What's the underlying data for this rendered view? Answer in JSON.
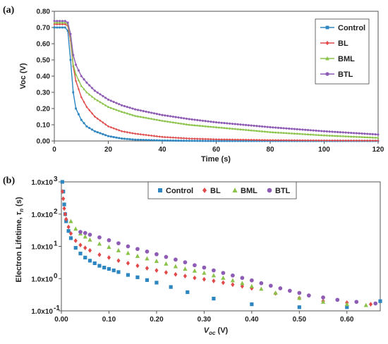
{
  "colors": {
    "Control": "#2E86C1",
    "BL": "#E04A4A",
    "BML": "#8BC34A",
    "BTL": "#8E5CB5"
  },
  "chart_data": [
    {
      "type": "line",
      "panel_label": "(a)",
      "xlabel": "Time (s)",
      "ylabel": "Voc (V)",
      "xlim": [
        0,
        120
      ],
      "ylim": [
        0,
        0.8
      ],
      "xticks": [
        0,
        20,
        40,
        60,
        80,
        100,
        120
      ],
      "yticks": [
        0.0,
        0.1,
        0.2,
        0.3,
        0.4,
        0.5,
        0.6,
        0.7,
        0.8
      ],
      "legend_position": "top-right",
      "series": [
        {
          "name": "Control",
          "marker": "square",
          "x": [
            0,
            4,
            5,
            6,
            7,
            8,
            10,
            12,
            15,
            20,
            25,
            30,
            40,
            50,
            60,
            80,
            100,
            120
          ],
          "y": [
            0.7,
            0.7,
            0.68,
            0.5,
            0.3,
            0.2,
            0.13,
            0.09,
            0.06,
            0.03,
            0.015,
            0.008,
            0.003,
            0.001,
            0,
            0,
            0,
            0
          ]
        },
        {
          "name": "BL",
          "marker": "diamond",
          "x": [
            0,
            4,
            5,
            6,
            7,
            8,
            10,
            12,
            15,
            20,
            25,
            30,
            40,
            50,
            60,
            80,
            100,
            120
          ],
          "y": [
            0.72,
            0.72,
            0.71,
            0.62,
            0.46,
            0.37,
            0.27,
            0.21,
            0.15,
            0.09,
            0.06,
            0.045,
            0.025,
            0.015,
            0.01,
            0.005,
            0.003,
            0.002
          ]
        },
        {
          "name": "BML",
          "marker": "triangle",
          "x": [
            0,
            4,
            5,
            6,
            7,
            8,
            10,
            12,
            15,
            20,
            25,
            30,
            40,
            50,
            60,
            80,
            100,
            120
          ],
          "y": [
            0.73,
            0.73,
            0.72,
            0.64,
            0.47,
            0.41,
            0.34,
            0.3,
            0.26,
            0.21,
            0.18,
            0.155,
            0.125,
            0.1,
            0.085,
            0.055,
            0.035,
            0.02
          ]
        },
        {
          "name": "BTL",
          "marker": "circle",
          "x": [
            0,
            4,
            5,
            6,
            7,
            8,
            10,
            12,
            15,
            20,
            25,
            30,
            40,
            50,
            60,
            80,
            100,
            120
          ],
          "y": [
            0.74,
            0.74,
            0.73,
            0.66,
            0.53,
            0.47,
            0.4,
            0.36,
            0.31,
            0.255,
            0.22,
            0.195,
            0.16,
            0.135,
            0.115,
            0.085,
            0.06,
            0.04
          ]
        }
      ]
    },
    {
      "type": "scatter",
      "panel_label": "(b)",
      "xlabel": "Voc (V)",
      "ylabel": "Electron Lifetime, τn (s)",
      "xlim": [
        0,
        0.67
      ],
      "ylim": [
        0.1,
        1000
      ],
      "yscale": "log",
      "xticks": [
        0.0,
        0.1,
        0.2,
        0.3,
        0.4,
        0.5,
        0.6
      ],
      "xtick_labels": [
        "0.00",
        "0.10",
        "0.20",
        "0.30",
        "0.40",
        "0.50",
        "0.60"
      ],
      "yticks": [
        0.1,
        1,
        10,
        100,
        1000
      ],
      "ytick_labels": [
        [
          "1.0x10",
          "-1"
        ],
        [
          "1.0x10",
          "0"
        ],
        [
          "1.0x10",
          "1"
        ],
        [
          "1.0x10",
          "2"
        ],
        [
          "1.0x10",
          "3"
        ]
      ],
      "legend_position": "top",
      "series": [
        {
          "name": "Control",
          "marker": "square",
          "x": [
            0.002,
            0.004,
            0.006,
            0.008,
            0.01,
            0.015,
            0.02,
            0.03,
            0.04,
            0.05,
            0.06,
            0.07,
            0.08,
            0.09,
            0.1,
            0.11,
            0.12,
            0.14,
            0.16,
            0.18,
            0.2,
            0.23,
            0.265,
            0.32,
            0.4,
            0.5,
            0.6,
            0.67
          ],
          "y": [
            1000,
            500,
            200,
            100,
            60,
            30,
            18,
            9,
            6,
            4.5,
            3.6,
            3.0,
            2.5,
            2.2,
            2.0,
            1.8,
            1.6,
            1.3,
            1.1,
            0.9,
            0.75,
            0.55,
            0.38,
            0.24,
            0.16,
            0.13,
            0.13,
            0.2
          ]
        },
        {
          "name": "BL",
          "marker": "diamond",
          "x": [
            0.002,
            0.004,
            0.006,
            0.008,
            0.01,
            0.015,
            0.02,
            0.03,
            0.04,
            0.05,
            0.06,
            0.08,
            0.1,
            0.12,
            0.14,
            0.16,
            0.18,
            0.2,
            0.22,
            0.24,
            0.26,
            0.28,
            0.3,
            0.32,
            0.34,
            0.36,
            0.38,
            0.4,
            0.45,
            0.5,
            0.55,
            0.6,
            0.65
          ],
          "y": [
            500,
            300,
            150,
            100,
            70,
            40,
            25,
            15,
            11,
            9,
            7.5,
            5.5,
            4.5,
            3.6,
            3.0,
            2.5,
            2.1,
            1.8,
            1.55,
            1.35,
            1.2,
            1.05,
            0.95,
            0.85,
            0.75,
            0.65,
            0.58,
            0.5,
            0.35,
            0.25,
            0.2,
            0.18,
            0.16
          ]
        },
        {
          "name": "BML",
          "marker": "triangle",
          "x": [
            0.02,
            0.03,
            0.04,
            0.05,
            0.06,
            0.08,
            0.1,
            0.12,
            0.14,
            0.16,
            0.18,
            0.2,
            0.22,
            0.24,
            0.26,
            0.28,
            0.3,
            0.32,
            0.34,
            0.36,
            0.38,
            0.4,
            0.42,
            0.45,
            0.5,
            0.55,
            0.6,
            0.64
          ],
          "y": [
            60,
            35,
            25,
            20,
            16,
            12,
            9.5,
            7.5,
            6.2,
            5.0,
            4.2,
            3.5,
            2.9,
            2.4,
            2.0,
            1.75,
            1.5,
            1.25,
            1.05,
            0.88,
            0.72,
            0.58,
            0.48,
            0.36,
            0.25,
            0.19,
            0.16,
            0.15
          ]
        },
        {
          "name": "BTL",
          "marker": "circle",
          "x": [
            0.04,
            0.05,
            0.06,
            0.08,
            0.1,
            0.12,
            0.14,
            0.16,
            0.18,
            0.2,
            0.22,
            0.24,
            0.26,
            0.28,
            0.3,
            0.32,
            0.34,
            0.36,
            0.38,
            0.4,
            0.42,
            0.44,
            0.46,
            0.48,
            0.5,
            0.52,
            0.55,
            0.58,
            0.62,
            0.66
          ],
          "y": [
            28,
            26,
            23,
            19,
            15.5,
            12.5,
            10,
            8.3,
            6.9,
            5.7,
            4.7,
            3.9,
            3.2,
            2.6,
            2.2,
            1.8,
            1.5,
            1.25,
            1.05,
            0.88,
            0.72,
            0.6,
            0.5,
            0.42,
            0.36,
            0.3,
            0.26,
            0.22,
            0.19,
            0.17
          ]
        }
      ]
    }
  ]
}
